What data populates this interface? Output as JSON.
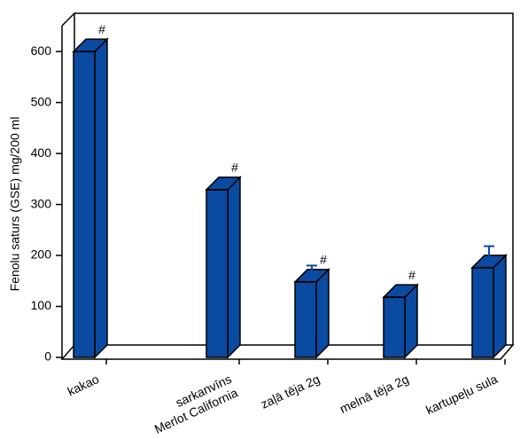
{
  "chart_data": {
    "type": "bar3d",
    "y_label": "Fenolu saturs (GSE) mg/200 ml",
    "categories": [
      "kakao",
      null,
      null,
      "sarkanvīns\nMerlot California",
      null,
      "zaļā tēja 2g",
      null,
      "melnā tēja 2g",
      null,
      "kartupeļu sula"
    ],
    "values": [
      600,
      null,
      null,
      329,
      null,
      148,
      null,
      118,
      null,
      176
    ],
    "errors": [
      5,
      null,
      null,
      5,
      null,
      20,
      null,
      5,
      null,
      30
    ],
    "annotations": [
      "#",
      null,
      null,
      "#",
      null,
      "#",
      null,
      "#",
      null,
      null
    ],
    "color": "#0a4aa0",
    "ylim": [
      0,
      675
    ],
    "yticks": [
      0,
      100,
      200,
      300,
      400,
      500,
      600
    ]
  }
}
